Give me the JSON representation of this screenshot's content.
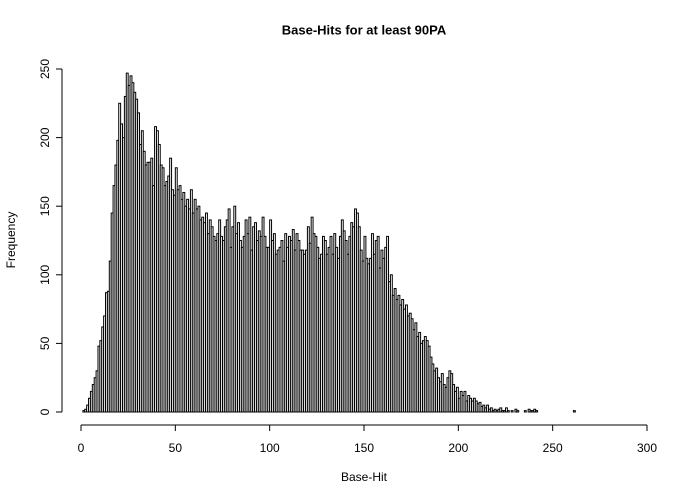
{
  "chart_data": {
    "type": "histogram",
    "title": "Base-Hits for at least 90PA",
    "xlabel": "Base-Hit",
    "ylabel": "Frequency",
    "bins": [
      0,
      1,
      2,
      3,
      4,
      5,
      6,
      7,
      8,
      9,
      10,
      11,
      12,
      13,
      14,
      15,
      16,
      17,
      18,
      19,
      20,
      21,
      22,
      23,
      24,
      25,
      26,
      27,
      28,
      29,
      30,
      31,
      32,
      33,
      34,
      35,
      36,
      37,
      38,
      39,
      40,
      41,
      42,
      43,
      44,
      45,
      46,
      47,
      48,
      49,
      50,
      51,
      52,
      53,
      54,
      55,
      56,
      57,
      58,
      59,
      60,
      61,
      62,
      63,
      64,
      65,
      66,
      67,
      68,
      69,
      70,
      71,
      72,
      73,
      74,
      75,
      76,
      77,
      78,
      79,
      80,
      81,
      82,
      83,
      84,
      85,
      86,
      87,
      88,
      89,
      90,
      91,
      92,
      93,
      94,
      95,
      96,
      97,
      98,
      99,
      100,
      101,
      102,
      103,
      104,
      105,
      106,
      107,
      108,
      109,
      110,
      111,
      112,
      113,
      114,
      115,
      116,
      117,
      118,
      119,
      120,
      121,
      122,
      123,
      124,
      125,
      126,
      127,
      128,
      129,
      130,
      131,
      132,
      133,
      134,
      135,
      136,
      137,
      138,
      139,
      140,
      141,
      142,
      143,
      144,
      145,
      146,
      147,
      148,
      149,
      150,
      151,
      152,
      153,
      154,
      155,
      156,
      157,
      158,
      159,
      160,
      161,
      162,
      163,
      164,
      165,
      166,
      167,
      168,
      169,
      170,
      171,
      172,
      173,
      174,
      175,
      176,
      177,
      178,
      179,
      180,
      181,
      182,
      183,
      184,
      185,
      186,
      187,
      188,
      189,
      190,
      191,
      192,
      193,
      194,
      195,
      196,
      197,
      198,
      199,
      200,
      201,
      202,
      203,
      204,
      205,
      206,
      207,
      208,
      209,
      210,
      211,
      212,
      213,
      214,
      215,
      216,
      217,
      218,
      219,
      220,
      221,
      222,
      223,
      224,
      225,
      226,
      227,
      228,
      229,
      230,
      231,
      232,
      233,
      234,
      235,
      236,
      237,
      238,
      239,
      240,
      241,
      242,
      243,
      244,
      245,
      246,
      247,
      248,
      249,
      250,
      251,
      252,
      253,
      254,
      255,
      256,
      257,
      258,
      259,
      260,
      261,
      262,
      263,
      264,
      265,
      266,
      267,
      268,
      269,
      270,
      271,
      272,
      273,
      274,
      275,
      276,
      277,
      278,
      279,
      280,
      281,
      282,
      283,
      284,
      285,
      286,
      287,
      288,
      289,
      290,
      291,
      292,
      293,
      294,
      295,
      296,
      297,
      298,
      299,
      300
    ],
    "values": [
      0,
      1,
      2,
      5,
      10,
      15,
      20,
      25,
      30,
      48,
      52,
      62,
      70,
      87,
      88,
      110,
      145,
      165,
      180,
      198,
      225,
      210,
      200,
      230,
      247,
      238,
      245,
      240,
      233,
      228,
      218,
      195,
      205,
      190,
      180,
      182,
      182,
      185,
      165,
      208,
      205,
      195,
      180,
      178,
      165,
      168,
      172,
      185,
      162,
      158,
      178,
      162,
      165,
      155,
      160,
      150,
      155,
      148,
      162,
      145,
      155,
      148,
      150,
      140,
      142,
      138,
      145,
      130,
      140,
      135,
      128,
      125,
      130,
      140,
      128,
      125,
      135,
      140,
      148,
      120,
      135,
      150,
      130,
      138,
      125,
      120,
      128,
      140,
      130,
      142,
      118,
      135,
      138,
      125,
      132,
      128,
      142,
      128,
      120,
      120,
      140,
      125,
      130,
      115,
      118,
      120,
      125,
      110,
      130,
      120,
      128,
      125,
      133,
      118,
      130,
      125,
      118,
      118,
      115,
      118,
      135,
      123,
      142,
      130,
      128,
      120,
      112,
      115,
      128,
      125,
      115,
      120,
      128,
      115,
      130,
      120,
      112,
      128,
      140,
      132,
      125,
      115,
      128,
      138,
      135,
      148,
      145,
      135,
      118,
      110,
      128,
      112,
      108,
      112,
      130,
      115,
      125,
      128,
      105,
      118,
      112,
      120,
      128,
      95,
      100,
      85,
      90,
      82,
      85,
      78,
      82,
      75,
      78,
      70,
      72,
      68,
      60,
      65,
      55,
      58,
      50,
      52,
      55,
      52,
      48,
      40,
      35,
      30,
      32,
      25,
      22,
      28,
      20,
      18,
      25,
      30,
      28,
      20,
      15,
      18,
      10,
      15,
      12,
      15,
      8,
      12,
      10,
      8,
      10,
      8,
      6,
      7,
      4,
      5,
      3,
      5,
      2,
      3,
      1,
      2,
      1,
      2,
      3,
      1,
      1,
      3,
      1,
      0,
      1,
      0,
      2,
      1,
      0,
      0,
      0,
      1,
      0,
      2,
      1,
      1,
      2,
      1,
      0,
      0,
      0,
      0,
      0,
      0,
      0,
      0,
      0,
      0,
      0,
      0,
      0,
      0,
      0,
      0,
      0,
      0,
      0,
      1,
      0,
      0,
      0,
      0,
      0,
      0,
      0,
      0,
      0,
      0,
      0,
      0,
      0,
      0,
      0,
      0,
      0,
      0,
      0,
      0,
      0,
      0,
      0,
      0,
      0,
      0,
      0,
      0,
      0,
      0,
      0,
      0,
      0,
      0,
      0,
      0,
      0,
      0
    ],
    "color": "#ffffff",
    "edgecolor": "#000000",
    "xlim": [
      0,
      300
    ],
    "xticks": [
      0,
      50,
      100,
      150,
      200,
      250,
      300
    ],
    "ylim": [
      0,
      250
    ],
    "yticks": [
      0,
      50,
      100,
      150,
      200,
      250
    ],
    "grid": false
  }
}
